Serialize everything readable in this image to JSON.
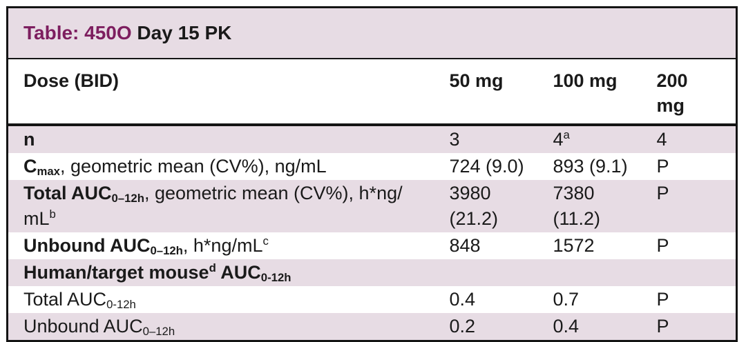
{
  "colors": {
    "row_pink": "#e7dce4",
    "title_accent": "#7d1e5f",
    "text": "#1a1a1a",
    "border": "#141414"
  },
  "table": {
    "title_accent": "Table: 450O",
    "title_rest": " Day 15 PK",
    "header": {
      "dose_label": [
        {
          "t": "Dose (BID)"
        }
      ],
      "columns": [
        [
          {
            "t": "50 mg"
          }
        ],
        [
          {
            "t": "100 mg"
          }
        ],
        [
          {
            "t": "200"
          },
          {
            "br": true
          },
          {
            "t": "mg"
          }
        ]
      ]
    },
    "rows": [
      {
        "label": [
          {
            "t": "n",
            "bold": true
          }
        ],
        "values": [
          [
            {
              "t": "3"
            }
          ],
          [
            {
              "t": "4"
            },
            {
              "t": "a",
              "script": "sup"
            }
          ],
          [
            {
              "t": "4"
            }
          ]
        ]
      },
      {
        "label": [
          {
            "t": "C",
            "bold": true
          },
          {
            "t": "max",
            "bold": true,
            "script": "sub"
          },
          {
            "t": ", geometric mean (CV%), ng/mL"
          }
        ],
        "values": [
          [
            {
              "t": "724 (9.0)"
            }
          ],
          [
            {
              "t": "893 (9.1)"
            }
          ],
          [
            {
              "t": "P"
            }
          ]
        ]
      },
      {
        "label": [
          {
            "t": "Total AUC",
            "bold": true
          },
          {
            "t": "0–12h",
            "bold": true,
            "script": "sub"
          },
          {
            "t": ", geometric mean (CV%), h*ng/"
          },
          {
            "br": true
          },
          {
            "t": "mL"
          },
          {
            "t": "b",
            "script": "sup"
          }
        ],
        "values": [
          [
            {
              "t": "3980"
            },
            {
              "br": true
            },
            {
              "t": "(21.2)"
            }
          ],
          [
            {
              "t": "7380"
            },
            {
              "br": true
            },
            {
              "t": "(11.2)"
            }
          ],
          [
            {
              "t": "P"
            }
          ]
        ]
      },
      {
        "label": [
          {
            "t": "Unbound AUC",
            "bold": true
          },
          {
            "t": "0–12h",
            "bold": true,
            "script": "sub"
          },
          {
            "t": ", h*ng/mL"
          },
          {
            "t": "c",
            "script": "sup"
          }
        ],
        "values": [
          [
            {
              "t": "848"
            }
          ],
          [
            {
              "t": "1572"
            }
          ],
          [
            {
              "t": "P"
            }
          ]
        ]
      },
      {
        "label": [
          {
            "t": "Human/target mouse",
            "bold": true
          },
          {
            "t": "d",
            "bold": true,
            "script": "sup"
          },
          {
            "t": " AUC",
            "bold": true
          },
          {
            "t": "0-12h",
            "bold": true,
            "script": "sub"
          }
        ],
        "values": [
          [],
          [],
          []
        ]
      },
      {
        "label": [
          {
            "t": "Total AUC"
          },
          {
            "t": "0-12h",
            "script": "sub"
          }
        ],
        "values": [
          [
            {
              "t": "0.4"
            }
          ],
          [
            {
              "t": "0.7"
            }
          ],
          [
            {
              "t": "P"
            }
          ]
        ]
      },
      {
        "label": [
          {
            "t": "Unbound AUC"
          },
          {
            "t": "0–12h",
            "script": "sub"
          }
        ],
        "values": [
          [
            {
              "t": "0.2"
            }
          ],
          [
            {
              "t": "0.4"
            }
          ],
          [
            {
              "t": "P"
            }
          ]
        ]
      }
    ]
  }
}
